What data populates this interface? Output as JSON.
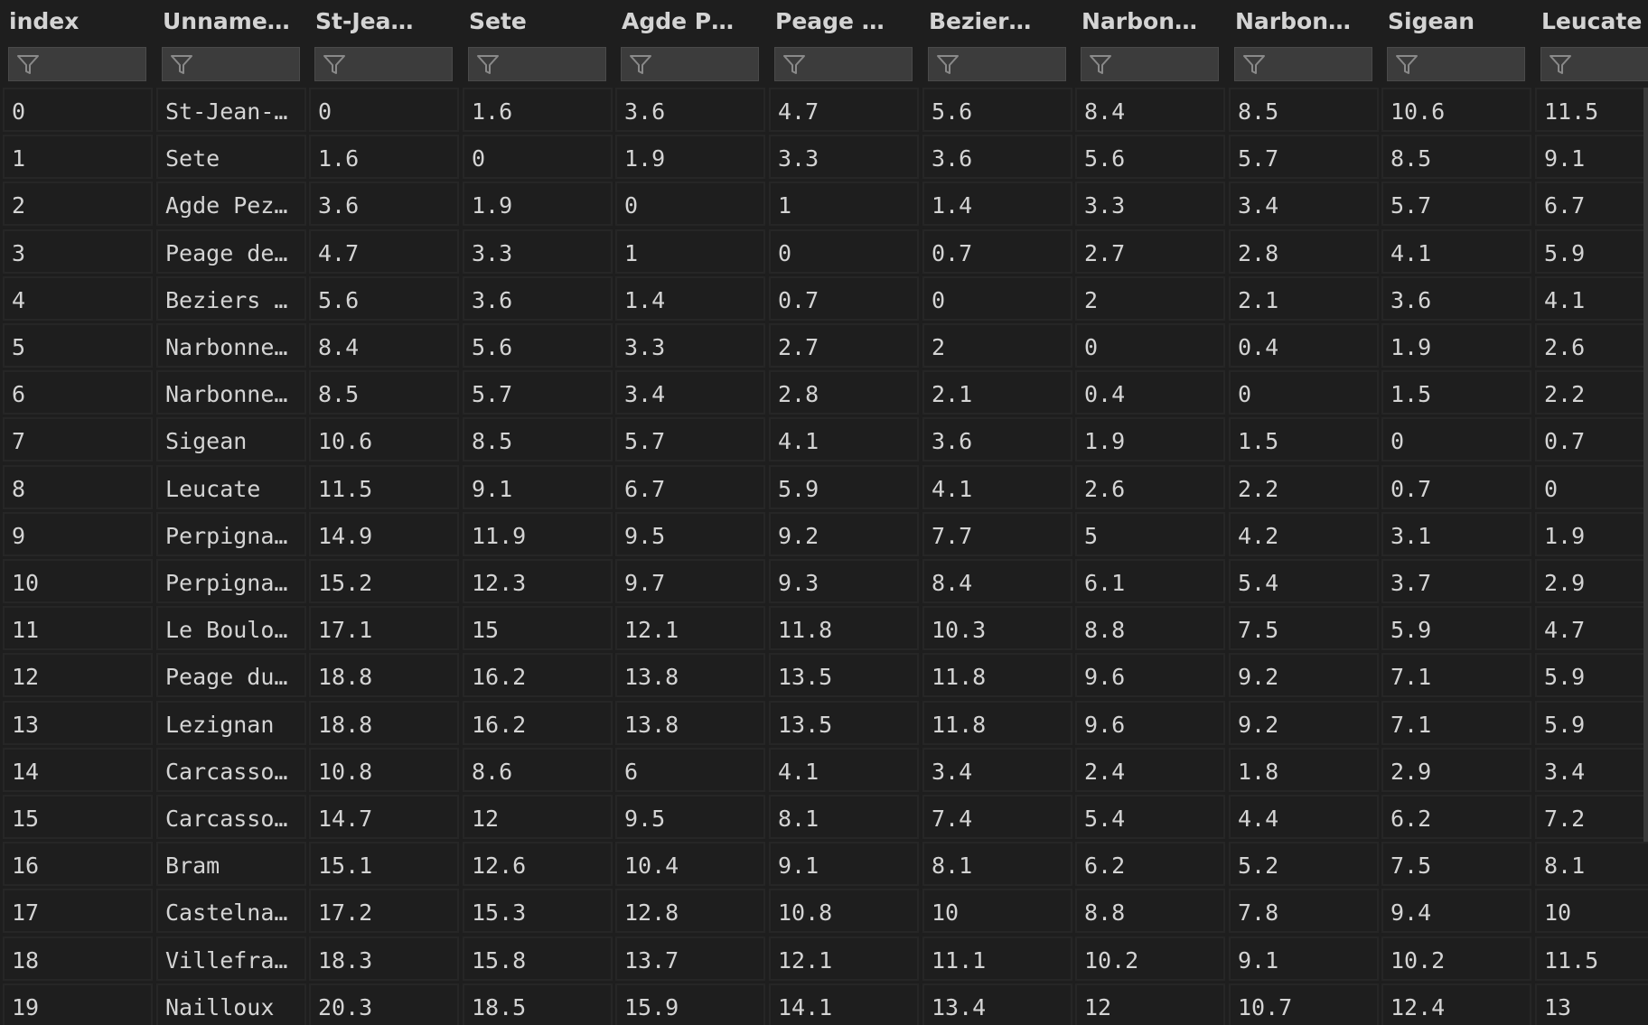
{
  "columns": [
    "index",
    "Unname…",
    "St-Jea…",
    "Sete",
    "Agde P…",
    "Peage …",
    "Bezier…",
    "Narbon…",
    "Narbon…",
    "Sigean",
    "Leucate"
  ],
  "rows": [
    [
      "0",
      "St-Jean-…",
      "0",
      "1.6",
      "3.6",
      "4.7",
      "5.6",
      "8.4",
      "8.5",
      "10.6",
      "11.5"
    ],
    [
      "1",
      "Sete",
      "1.6",
      "0",
      "1.9",
      "3.3",
      "3.6",
      "5.6",
      "5.7",
      "8.5",
      "9.1"
    ],
    [
      "2",
      "Agde Pez…",
      "3.6",
      "1.9",
      "0",
      "1",
      "1.4",
      "3.3",
      "3.4",
      "5.7",
      "6.7"
    ],
    [
      "3",
      "Peage de…",
      "4.7",
      "3.3",
      "1",
      "0",
      "0.7",
      "2.7",
      "2.8",
      "4.1",
      "5.9"
    ],
    [
      "4",
      "Beziers …",
      "5.6",
      "3.6",
      "1.4",
      "0.7",
      "0",
      "2",
      "2.1",
      "3.6",
      "4.1"
    ],
    [
      "5",
      "Narbonne…",
      "8.4",
      "5.6",
      "3.3",
      "2.7",
      "2",
      "0",
      "0.4",
      "1.9",
      "2.6"
    ],
    [
      "6",
      "Narbonne…",
      "8.5",
      "5.7",
      "3.4",
      "2.8",
      "2.1",
      "0.4",
      "0",
      "1.5",
      "2.2"
    ],
    [
      "7",
      "Sigean",
      "10.6",
      "8.5",
      "5.7",
      "4.1",
      "3.6",
      "1.9",
      "1.5",
      "0",
      "0.7"
    ],
    [
      "8",
      "Leucate",
      "11.5",
      "9.1",
      "6.7",
      "5.9",
      "4.1",
      "2.6",
      "2.2",
      "0.7",
      "0"
    ],
    [
      "9",
      "Perpigna…",
      "14.9",
      "11.9",
      "9.5",
      "9.2",
      "7.7",
      "5",
      "4.2",
      "3.1",
      "1.9"
    ],
    [
      "10",
      "Perpigna…",
      "15.2",
      "12.3",
      "9.7",
      "9.3",
      "8.4",
      "6.1",
      "5.4",
      "3.7",
      "2.9"
    ],
    [
      "11",
      "Le Boulo…",
      "17.1",
      "15",
      "12.1",
      "11.8",
      "10.3",
      "8.8",
      "7.5",
      "5.9",
      "4.7"
    ],
    [
      "12",
      "Peage du…",
      "18.8",
      "16.2",
      "13.8",
      "13.5",
      "11.8",
      "9.6",
      "9.2",
      "7.1",
      "5.9"
    ],
    [
      "13",
      "Lezignan",
      "18.8",
      "16.2",
      "13.8",
      "13.5",
      "11.8",
      "9.6",
      "9.2",
      "7.1",
      "5.9"
    ],
    [
      "14",
      "Carcasso…",
      "10.8",
      "8.6",
      "6",
      "4.1",
      "3.4",
      "2.4",
      "1.8",
      "2.9",
      "3.4"
    ],
    [
      "15",
      "Carcasso…",
      "14.7",
      "12",
      "9.5",
      "8.1",
      "7.4",
      "5.4",
      "4.4",
      "6.2",
      "7.2"
    ],
    [
      "16",
      "Bram",
      "15.1",
      "12.6",
      "10.4",
      "9.1",
      "8.1",
      "6.2",
      "5.2",
      "7.5",
      "8.1"
    ],
    [
      "17",
      "Castelna…",
      "17.2",
      "15.3",
      "12.8",
      "10.8",
      "10",
      "8.8",
      "7.8",
      "9.4",
      "10"
    ],
    [
      "18",
      "Villefra…",
      "18.3",
      "15.8",
      "13.7",
      "12.1",
      "11.1",
      "10.2",
      "9.1",
      "10.2",
      "11.5"
    ],
    [
      "19",
      "Nailloux",
      "20.3",
      "18.5",
      "15.9",
      "14.1",
      "13.4",
      "12",
      "10.7",
      "12.4",
      "13"
    ]
  ],
  "filter_icon": "filter-funnel-icon",
  "colors": {
    "background": "#1e1e1e",
    "cell_border": "#262626",
    "filter_box": "#3c3c3c",
    "text": "#d4d4d4"
  }
}
